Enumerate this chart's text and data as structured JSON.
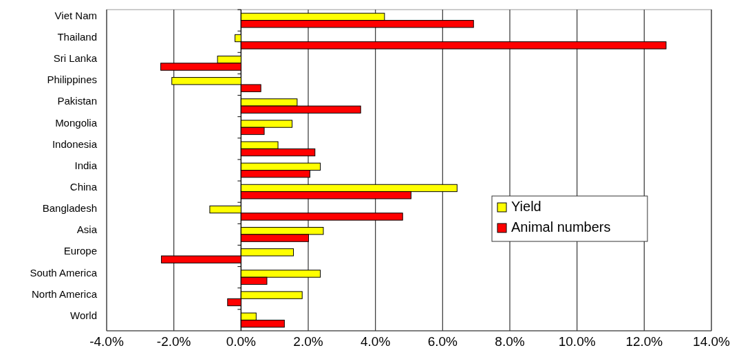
{
  "chart_data": {
    "type": "bar",
    "orientation": "horizontal",
    "categories": [
      "Viet Nam",
      "Thailand",
      "Sri Lanka",
      "Philippines",
      "Pakistan",
      "Mongolia",
      "Indonesia",
      "India",
      "China",
      "Bangladesh",
      "Asia",
      "Europe",
      "South America",
      "North America",
      "World"
    ],
    "series": [
      {
        "name": "Yield",
        "color": "#ffff00",
        "values": [
          4.27,
          -0.18,
          -0.7,
          -2.06,
          1.67,
          1.52,
          1.1,
          2.36,
          6.43,
          -0.93,
          2.45,
          1.56,
          2.36,
          1.82,
          0.45
        ]
      },
      {
        "name": "Animal numbers",
        "color": "#ff0000",
        "values": [
          6.92,
          12.65,
          -2.39,
          0.59,
          3.56,
          0.69,
          2.2,
          2.05,
          5.06,
          4.81,
          2.01,
          -2.37,
          0.77,
          -0.4,
          1.29
        ]
      }
    ],
    "xlim": [
      -4,
      14
    ],
    "xticks": [
      {
        "value": -4,
        "label": "-4.0%"
      },
      {
        "value": -2,
        "label": "-2.0%"
      },
      {
        "value": 0,
        "label": "0.0%"
      },
      {
        "value": 2,
        "label": "2.0%"
      },
      {
        "value": 4,
        "label": "4.0%"
      },
      {
        "value": 6,
        "label": "6.0%"
      },
      {
        "value": 8,
        "label": "8.0%"
      },
      {
        "value": 10,
        "label": "10.0%"
      },
      {
        "value": 12,
        "label": "12.0%"
      },
      {
        "value": 14,
        "label": "14.0%"
      }
    ],
    "grid": "x",
    "legend": "right"
  }
}
